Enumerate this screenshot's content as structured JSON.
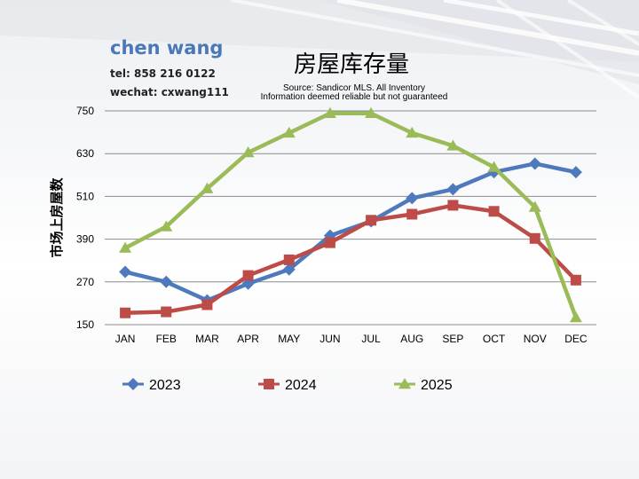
{
  "header": {
    "agent_name": "chen wang",
    "phone": "tel: 858 216 0122",
    "wechat": "wechat: cxwang111"
  },
  "chart_data": {
    "type": "line",
    "title": "房屋库存量",
    "subtitle": [
      "Source: Sandicor MLS. All Inventory",
      "Information deemed reliable but not guaranteed"
    ],
    "xlabel": "",
    "ylabel": "市场上房屋数",
    "categories": [
      "JAN",
      "FEB",
      "MAR",
      "APR",
      "MAY",
      "JUN",
      "JUL",
      "AUG",
      "SEP",
      "OCT",
      "NOV",
      "DEC"
    ],
    "ylim": [
      150,
      750
    ],
    "yticks": [
      150,
      270,
      390,
      510,
      630,
      750
    ],
    "grid": true,
    "legend": "bottom",
    "series": [
      {
        "name": "2023",
        "color": "#4e79bd",
        "marker": "diamond",
        "values": [
          298,
          270,
          218,
          265,
          305,
          400,
          440,
          505,
          530,
          578,
          602,
          578
        ]
      },
      {
        "name": "2024",
        "color": "#bd4b48",
        "marker": "square",
        "values": [
          183,
          186,
          206,
          288,
          332,
          380,
          443,
          460,
          485,
          468,
          392,
          275
        ]
      },
      {
        "name": "2025",
        "color": "#9bbb59",
        "marker": "triangle",
        "values": [
          365,
          425,
          532,
          633,
          688,
          743,
          743,
          688,
          652,
          592,
          480,
          170
        ]
      }
    ]
  }
}
